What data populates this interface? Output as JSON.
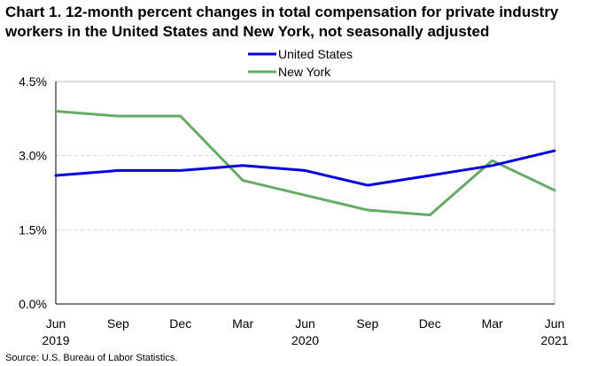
{
  "title": "Chart 1. 12-month percent changes in total compensation for private industry workers in the United States and New York, not seasonally adjusted",
  "source": "Source: U.S. Bureau of Labor Statistics.",
  "chart_data": {
    "type": "line",
    "title": "Chart 1. 12-month percent changes in total compensation for private industry workers in the United States and New York, not seasonally adjusted",
    "xlabel": "",
    "ylabel": "",
    "categories": [
      "Jun",
      "Sep",
      "Dec",
      "Mar",
      "Jun",
      "Sep",
      "Dec",
      "Mar",
      "Jun"
    ],
    "year_labels": [
      {
        "index": 0,
        "label": "2019"
      },
      {
        "index": 4,
        "label": "2020"
      },
      {
        "index": 8,
        "label": "2021"
      }
    ],
    "ylim": [
      0,
      4.5
    ],
    "yticks": [
      0,
      1.5,
      3.0,
      4.5
    ],
    "ytick_labels": [
      "0.0%",
      "1.5%",
      "3.0%",
      "4.5%"
    ],
    "grid": true,
    "legend_position": "top-center",
    "series": [
      {
        "name": "United States",
        "color": "#0000dd",
        "values": [
          2.6,
          2.7,
          2.7,
          2.8,
          2.7,
          2.4,
          2.6,
          2.8,
          3.1
        ]
      },
      {
        "name": "New York",
        "color": "#66aa66",
        "values": [
          3.9,
          3.8,
          3.8,
          2.5,
          2.2,
          1.9,
          1.8,
          2.9,
          2.3
        ]
      }
    ]
  }
}
